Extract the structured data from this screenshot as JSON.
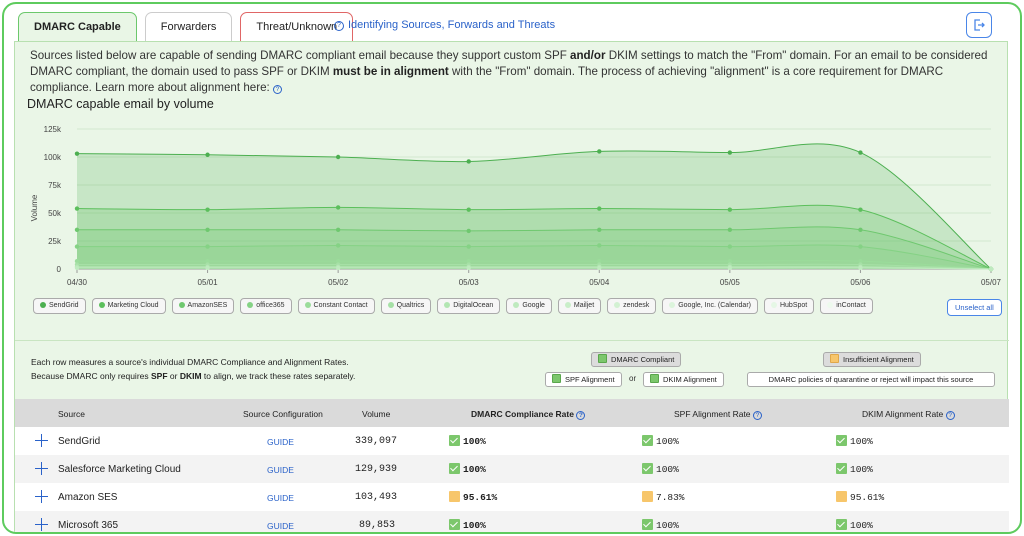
{
  "tabs": [
    {
      "label": "DMARC Capable"
    },
    {
      "label": "Forwarders"
    },
    {
      "label": "Threat/Unknown"
    }
  ],
  "help_link": "Identifying Sources, Forwards and Threats",
  "intro": {
    "part1": "Sources listed below are capable of sending DMARC compliant email because they support custom SPF ",
    "bold1": "and/or",
    "part2": " DKIM settings to match the \"From\" domain. For an email to be considered DMARC compliant, the domain used to pass SPF or DKIM ",
    "bold2": "must be in alignment",
    "part3": " with the \"From\" domain. The process of achieving \"alignment\" is a core requirement for DMARC compliance. Learn more about alignment here:"
  },
  "chart_title": "DMARC capable email by volume",
  "chart_data": {
    "type": "area",
    "ylabel": "Volume",
    "y_ticks": [
      "125k",
      "100k",
      "75k",
      "50k",
      "25k",
      "0"
    ],
    "ylim": [
      0,
      125000
    ],
    "x": [
      "04/30",
      "05/01",
      "05/02",
      "05/03",
      "05/04",
      "05/05",
      "05/06",
      "05/07"
    ],
    "series": [
      {
        "name": "SendGrid",
        "values": [
          103000,
          102000,
          100000,
          96000,
          105000,
          104000,
          104000,
          0
        ],
        "color": "#4caf50"
      },
      {
        "name": "Marketing Cloud",
        "values": [
          54000,
          53000,
          55000,
          53000,
          54000,
          53000,
          53000,
          0
        ],
        "color": "#5cbf5c"
      },
      {
        "name": "AmazonSES",
        "values": [
          35000,
          35000,
          35000,
          34000,
          35000,
          35000,
          35000,
          0
        ],
        "color": "#6fc86f"
      },
      {
        "name": "office365",
        "values": [
          20000,
          20000,
          21000,
          20000,
          21000,
          20000,
          20000,
          0
        ],
        "color": "#85d285"
      },
      {
        "name": "Constant Contact",
        "values": [
          7000,
          7000,
          7000,
          7000,
          7000,
          7000,
          7000,
          0
        ],
        "color": "#9bdc9b"
      },
      {
        "name": "Qualtrics",
        "values": [
          4000,
          4000,
          4000,
          4000,
          4000,
          4000,
          4000,
          0
        ],
        "color": "#a6e0a6"
      },
      {
        "name": "DigitalOcean",
        "values": [
          2000,
          2000,
          2000,
          2000,
          2000,
          2000,
          2000,
          0
        ],
        "color": "#b3e6b3"
      },
      {
        "name": "Google",
        "values": [
          1000,
          1000,
          1000,
          1000,
          1000,
          1000,
          1000,
          0
        ],
        "color": "#bfeabf"
      }
    ]
  },
  "legend": [
    {
      "label": "SendGrid",
      "color": "#4caf50"
    },
    {
      "label": "Marketing Cloud",
      "color": "#5cbf5c"
    },
    {
      "label": "AmazonSES",
      "color": "#6fc86f"
    },
    {
      "label": "office365",
      "color": "#85d285"
    },
    {
      "label": "Constant Contact",
      "color": "#9bdc9b"
    },
    {
      "label": "Qualtrics",
      "color": "#a6e0a6"
    },
    {
      "label": "DigitalOcean",
      "color": "#b3e6b3"
    },
    {
      "label": "Google",
      "color": "#bfeabf"
    },
    {
      "label": "Mailjet",
      "color": "#c9eec9"
    },
    {
      "label": "zendesk",
      "color": "#d3f1d3"
    },
    {
      "label": "Google, Inc. (Calendar)",
      "color": "#dcf4dc"
    },
    {
      "label": "HubSpot",
      "color": "#e5f7e5"
    },
    {
      "label": "inContact",
      "color": "#eefaee"
    }
  ],
  "unselect_all": "Unselect all",
  "note": {
    "line1": "Each row measures a source's individual DMARC Compliance and Alignment Rates.",
    "line2a": "Because DMARC only requires ",
    "spf": "SPF",
    "or": " or ",
    "dkim": "DKIM",
    "line2b": " to align, we track these rates separately."
  },
  "badges": {
    "compliant": "DMARC Compliant",
    "insufficient": "Insufficient Alignment",
    "spf_alignment": "SPF Alignment",
    "or": "or",
    "dkim_alignment": "DKIM Alignment",
    "policy_note": "DMARC policies of quarantine or reject will impact this source"
  },
  "table": {
    "headers": {
      "source": "Source",
      "config": "Source Configuration",
      "volume": "Volume",
      "compliance": "DMARC Compliance Rate",
      "spf": "SPF Alignment Rate",
      "dkim": "DKIM Alignment Rate"
    },
    "rows": [
      {
        "source": "SendGrid",
        "guide": "GUIDE",
        "volume": "339,097",
        "compliance": "100%",
        "compliance_status": "green",
        "spf": "100%",
        "spf_status": "green",
        "dkim": "100%",
        "dkim_status": "green"
      },
      {
        "source": "Salesforce Marketing Cloud",
        "guide": "GUIDE",
        "volume": "129,939",
        "compliance": "100%",
        "compliance_status": "green",
        "spf": "100%",
        "spf_status": "green",
        "dkim": "100%",
        "dkim_status": "green"
      },
      {
        "source": "Amazon SES",
        "guide": "GUIDE",
        "volume": "103,493",
        "compliance": "95.61%",
        "compliance_status": "orange",
        "spf": "7.83%",
        "spf_status": "orange",
        "dkim": "95.61%",
        "dkim_status": "orange"
      },
      {
        "source": "Microsoft 365",
        "guide": "GUIDE",
        "volume": "89,853",
        "compliance": "100%",
        "compliance_status": "green",
        "spf": "100%",
        "spf_status": "green",
        "dkim": "100%",
        "dkim_status": "green"
      }
    ]
  }
}
